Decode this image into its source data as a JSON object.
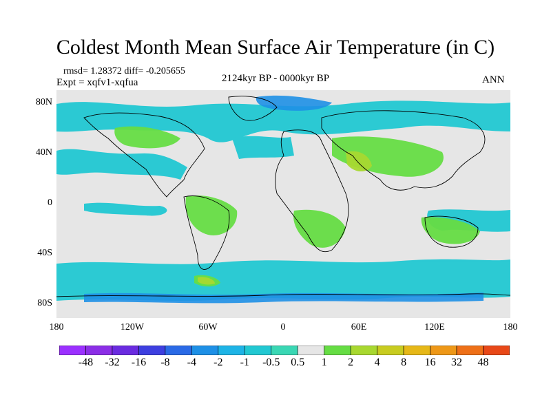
{
  "title": "Coldest Month Mean Surface Air Temperature (in C)",
  "stats": "rmsd= 1.28372 diff= -0.205655",
  "expt": "Expt = xqfv1-xqfua",
  "period": "2124kyr BP - 0000kyr BP",
  "season": "ANN",
  "x_ticks": [
    "180",
    "120W",
    "60W",
    "0",
    "60E",
    "120E",
    "180"
  ],
  "y_ticks": [
    "80N",
    "40N",
    "0",
    "40S",
    "80S"
  ],
  "colorbar": {
    "colors": [
      "#8b2ee6",
      "#6a2be0",
      "#3d3fe0",
      "#2a6ae6",
      "#1e90e6",
      "#1eb4e6",
      "#22c8d2",
      "#3ad7b4",
      "#e6e6e6",
      "#66dd44",
      "#a8d830",
      "#c8cc20",
      "#e6b818",
      "#ee9818",
      "#ee7018",
      "#e84818"
    ],
    "labels": [
      "-48",
      "-32",
      "-16",
      "-8",
      "-4",
      "-2",
      "-1",
      "-0.5",
      "0.5",
      "1",
      "2",
      "4",
      "8",
      "16",
      "32",
      "48"
    ]
  },
  "map": {
    "background": "#e6e6e6",
    "negative_fill": "#22c8d2",
    "strong_negative_fill": "#1e90e6",
    "positive_fill": "#66dd44",
    "warm_fill": "#a8d830",
    "coast_color": "#000000"
  }
}
